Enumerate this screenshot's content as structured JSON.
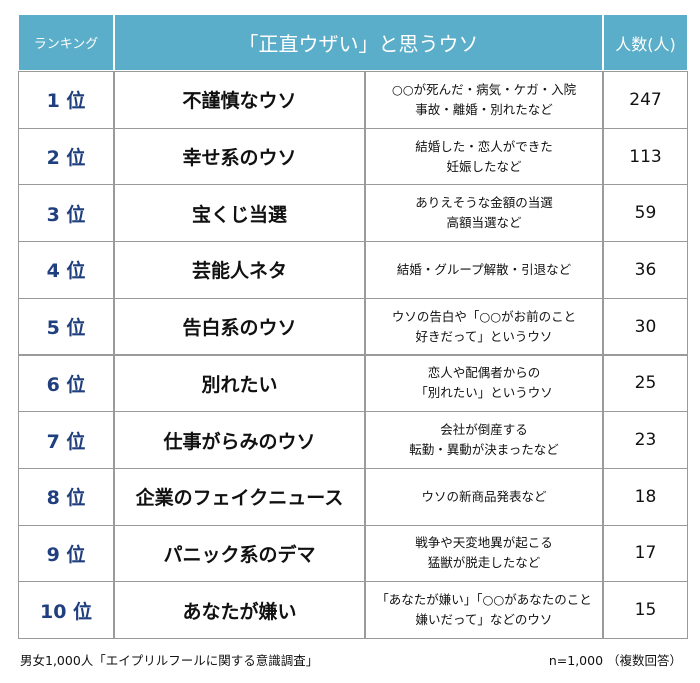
{
  "header": {
    "rank": "ランキング",
    "title": "「正直ウザい」と思うウソ",
    "count": "人数(人)"
  },
  "table": {
    "rows": [
      {
        "rank": "1 位",
        "title": "不謹慎なウソ",
        "description": [
          "○○が死んだ・病気・ケガ・入院",
          "事故・離婚・別れたなど"
        ],
        "count": 247
      },
      {
        "rank": "2 位",
        "title": "幸せ系のウソ",
        "description": [
          "結婚した・恋人ができた",
          "妊娠したなど"
        ],
        "count": 113
      },
      {
        "rank": "3 位",
        "title": "宝くじ当選",
        "description": [
          "ありえそうな金額の当選",
          "高額当選など"
        ],
        "count": 59
      },
      {
        "rank": "4 位",
        "title": "芸能人ネタ",
        "description": [
          "結婚・グループ解散・引退など"
        ],
        "count": 36
      },
      {
        "rank": "5 位",
        "title": "告白系のウソ",
        "description": [
          "ウソの告白や「○○がお前のこと",
          "好きだって」というウソ"
        ],
        "count": 30
      },
      {
        "rank": "6 位",
        "title": "別れたい",
        "description": [
          "恋人や配偶者からの",
          "「別れたい」というウソ"
        ],
        "count": 25
      },
      {
        "rank": "7 位",
        "title": "仕事がらみのウソ",
        "description": [
          "会社が倒産する",
          "転勤・異動が決まったなど"
        ],
        "count": 23
      },
      {
        "rank": "8 位",
        "title": "企業のフェイクニュース",
        "description": [
          "ウソの新商品発表など"
        ],
        "count": 18
      },
      {
        "rank": "9 位",
        "title": "パニック系のデマ",
        "description": [
          "戦争や天変地異が起こる",
          "猛獣が脱走したなど"
        ],
        "count": 17
      },
      {
        "rank": "10 位",
        "title": "あなたが嫌い",
        "description": [
          "「あなたが嫌い」「○○があなたのこと",
          "嫌いだって」などのウソ"
        ],
        "count": 15
      }
    ]
  },
  "footer": {
    "source": "男女1,000人「エイプリルフールに関する意識調査」",
    "note": "n=1,000 （複数回答）"
  }
}
